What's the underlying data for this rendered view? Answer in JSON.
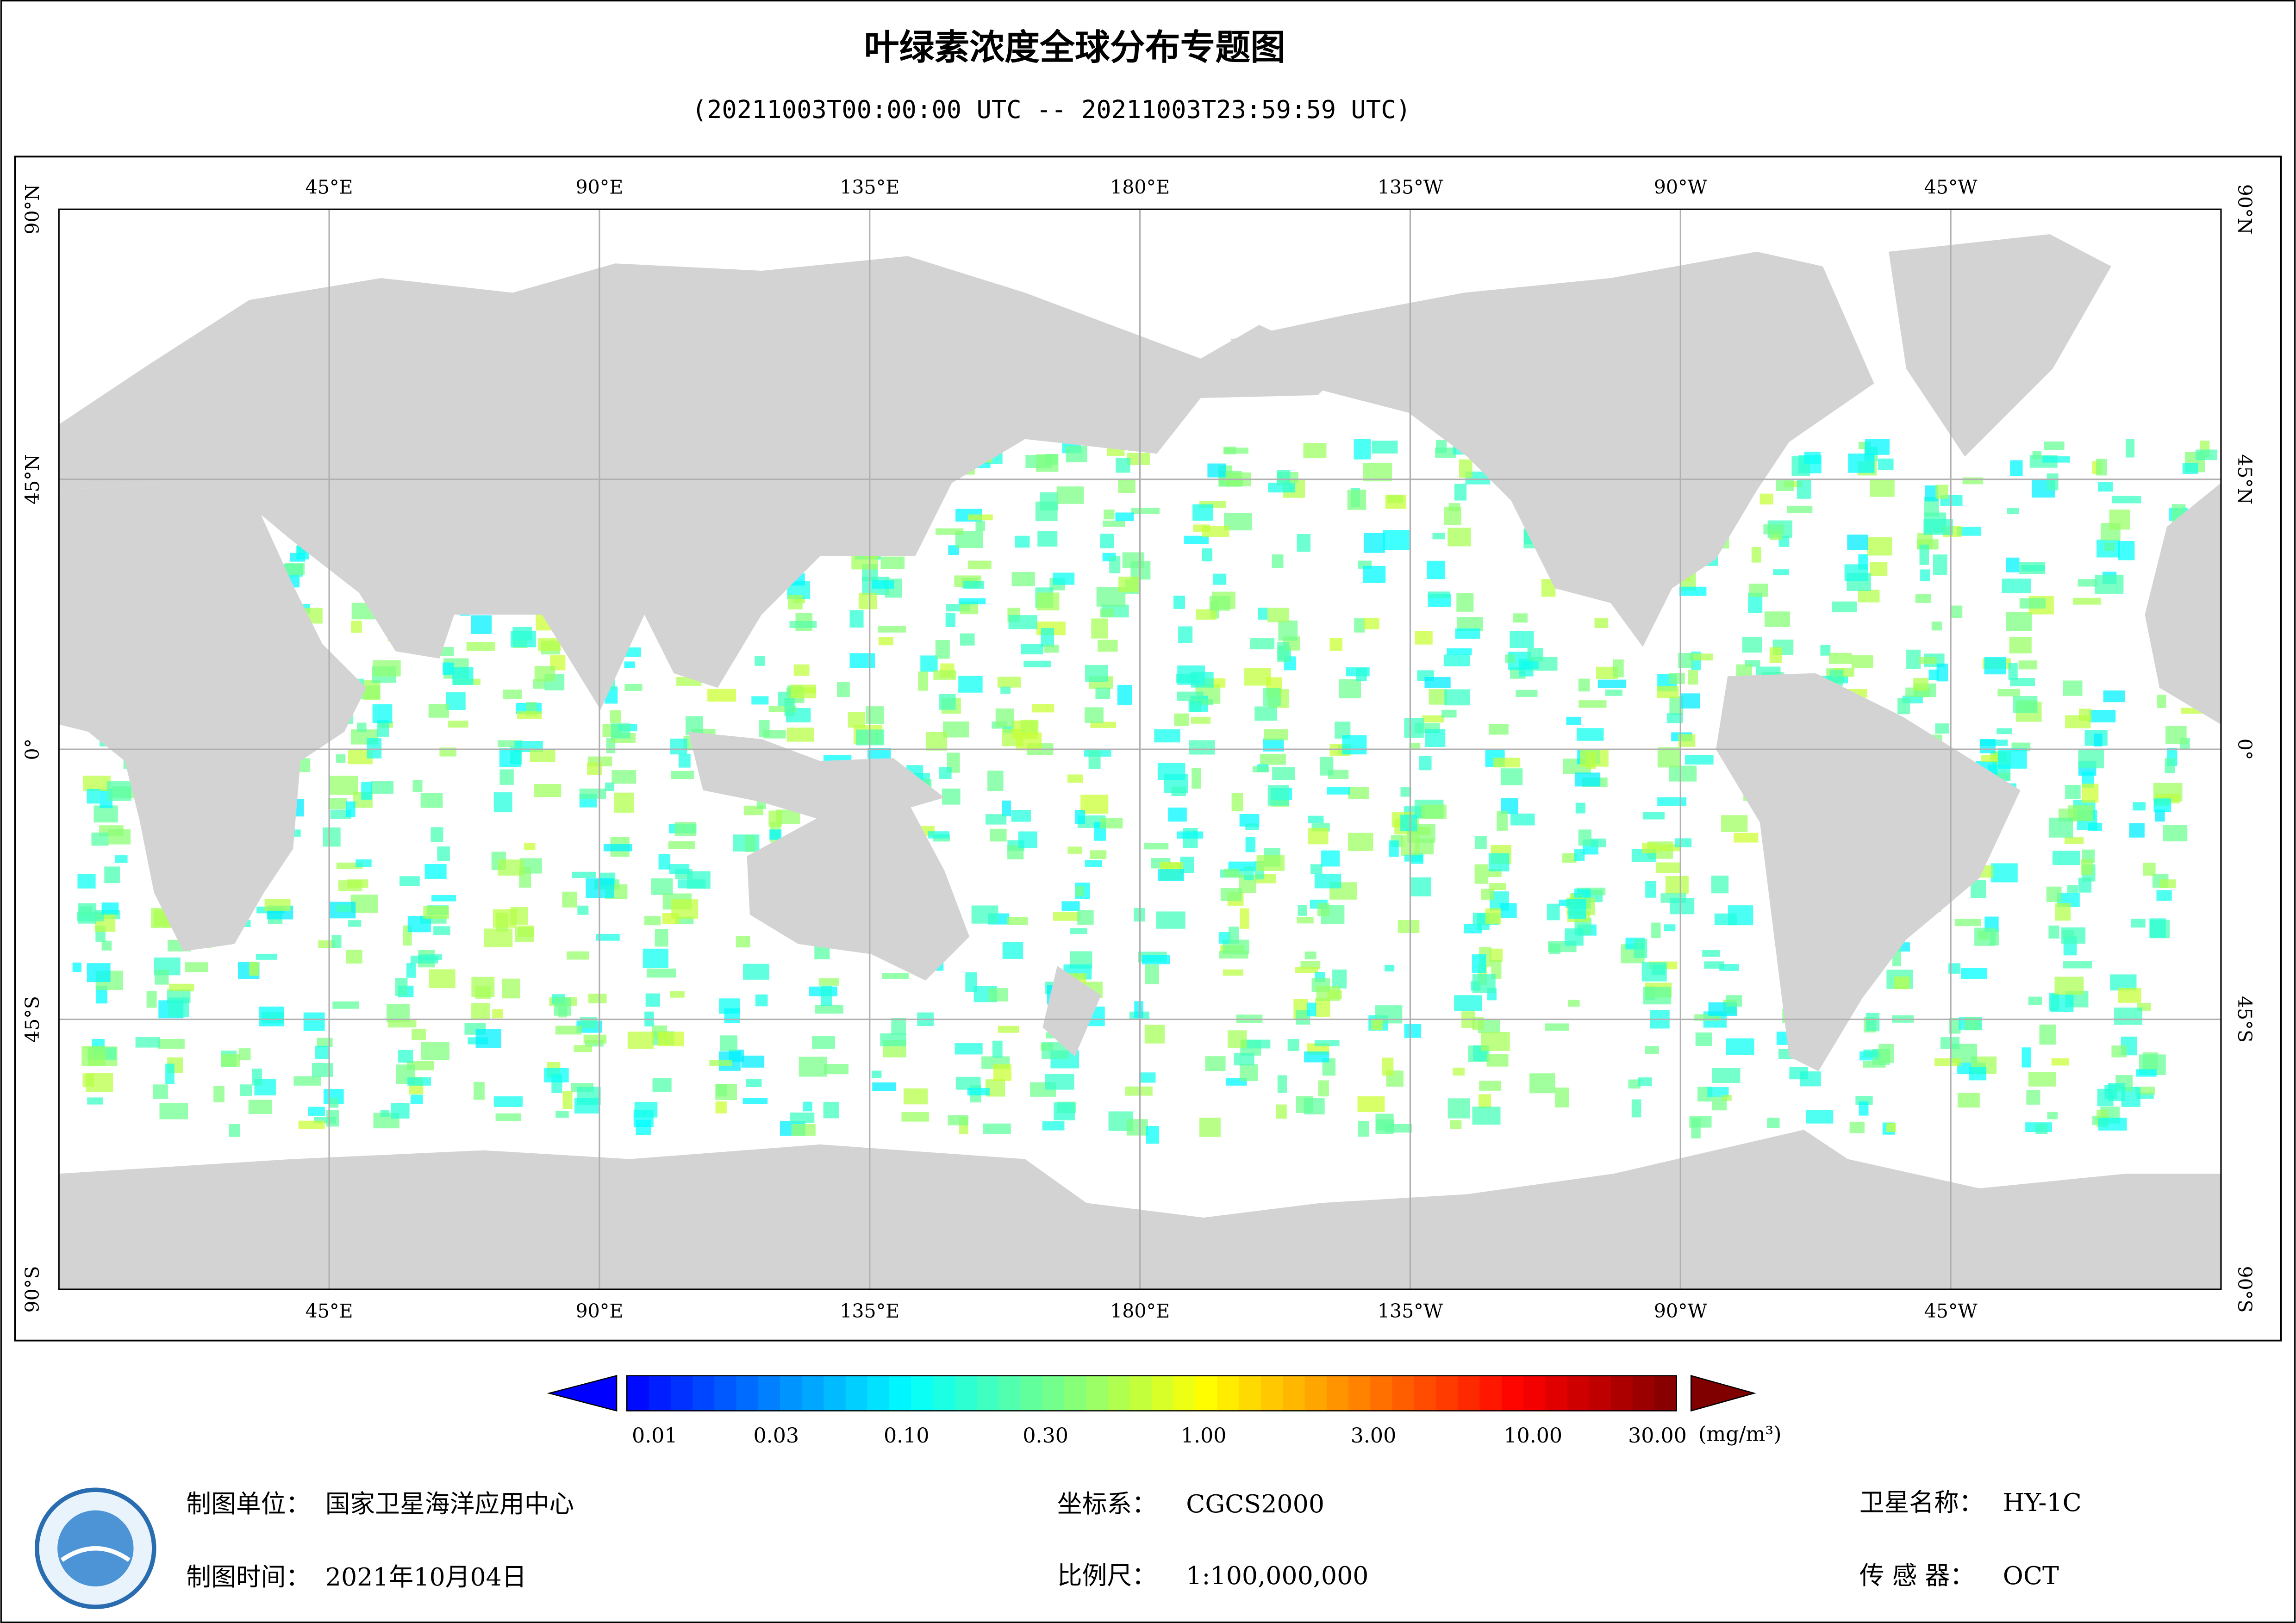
{
  "header": {
    "title": "叶绿素浓度全球分布专题图",
    "subtitle": "(20211003T00:00:00 UTC -- 20211003T23:59:59 UTC)"
  },
  "map": {
    "lon_labels": [
      "45°E",
      "90°E",
      "135°E",
      "180°E",
      "135°W",
      "90°W",
      "45°W"
    ],
    "lat_labels": [
      "90°N",
      "45°N",
      "0°",
      "45°S",
      "90°S"
    ]
  },
  "colorbar": {
    "labels": [
      "0.01",
      "0.03",
      "0.10",
      "0.30",
      "1.00",
      "3.00",
      "10.00",
      "30.00"
    ],
    "unit": "(mg/m³)"
  },
  "footer": {
    "producer": {
      "label": "制图单位：",
      "value": "国家卫星海洋应用中心"
    },
    "date": {
      "label": "制图时间：",
      "value": "2021年10月04日"
    },
    "crs": {
      "label": "坐标系：",
      "value": "CGCS2000"
    },
    "scale": {
      "label": "比例尺：",
      "value": "1:100,000,000"
    },
    "satellite": {
      "label": "卫星名称：",
      "value": "HY-1C"
    },
    "sensor": {
      "label": "传 感 器：",
      "value": "OCT"
    }
  }
}
